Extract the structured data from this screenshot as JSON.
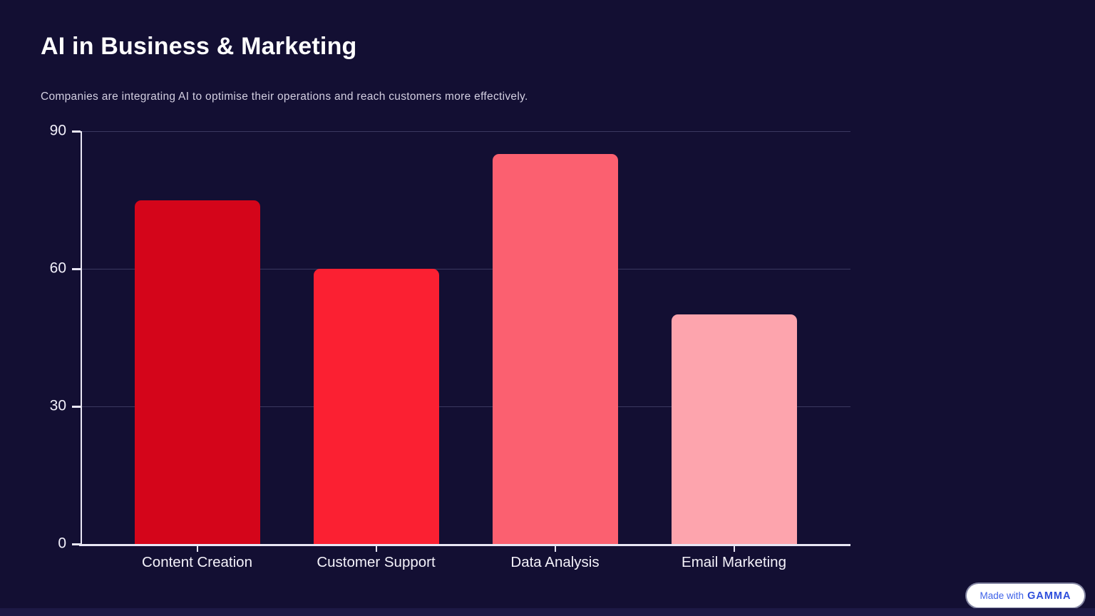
{
  "slide": {
    "title": "AI in Business & Marketing",
    "subtitle": "Companies are integrating AI to optimise their operations and reach customers more effectively."
  },
  "chart_data": {
    "type": "bar",
    "title": "",
    "categories": [
      "Content Creation",
      "Customer Support",
      "Data Analysis",
      "Email Marketing"
    ],
    "values": [
      75,
      60,
      85,
      50
    ],
    "bar_colors": [
      "#d4051a",
      "#fb2032",
      "#fb6070",
      "#fda4ad"
    ],
    "xlabel": "",
    "ylabel": "",
    "ylim": [
      0,
      90
    ],
    "yticks": [
      0,
      30,
      60,
      90
    ],
    "grid": true,
    "legend": false
  },
  "badge": {
    "prefix": "Made with",
    "brand": "GAMMA"
  },
  "colors": {
    "background": "#130f33",
    "axis": "#e8e6f4",
    "gridline": "#3b3860",
    "title": "#ffffff",
    "subtitle": "#d3cfe1",
    "badge_text": "#3f63e8",
    "badge_brand": "#2c4ddb"
  }
}
